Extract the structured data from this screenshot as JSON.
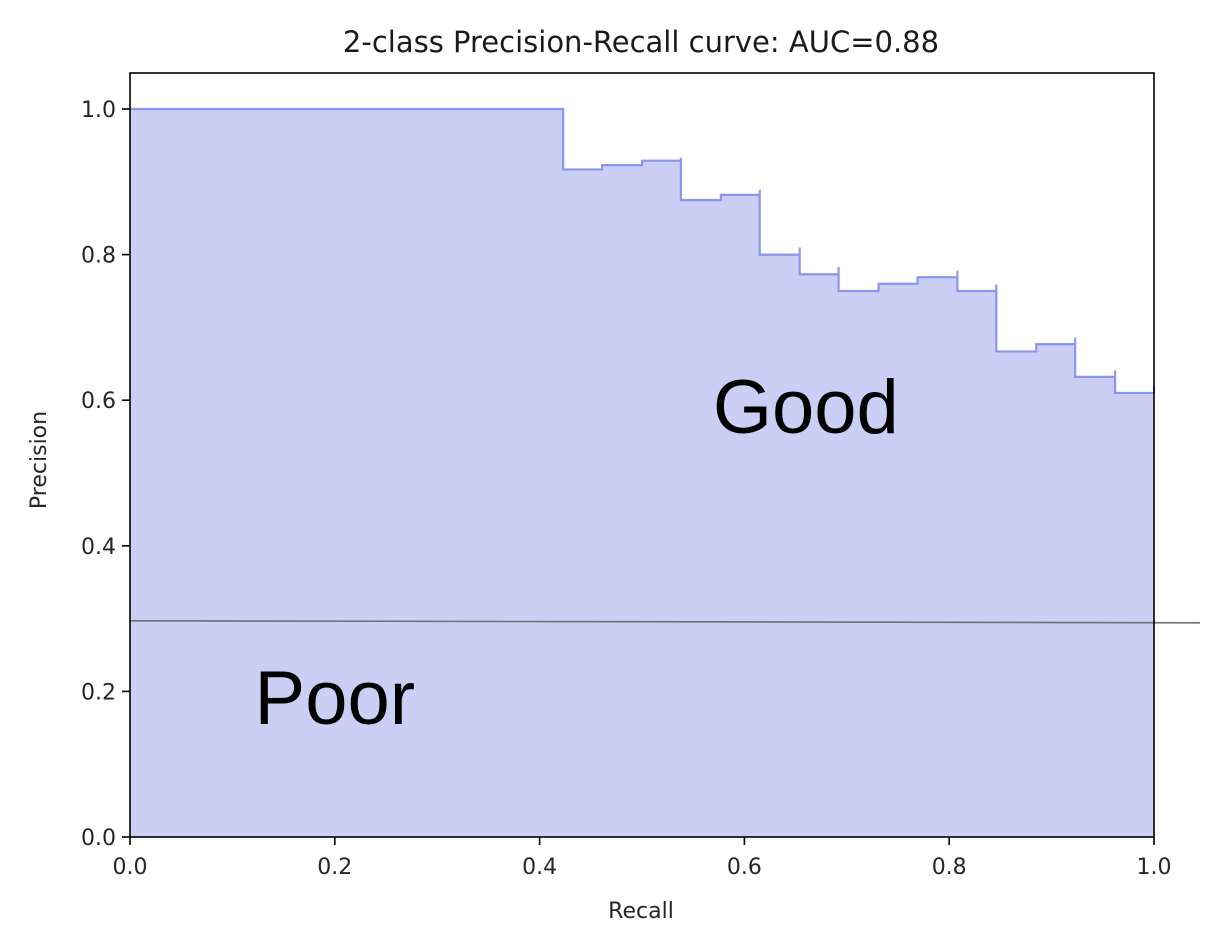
{
  "chart_data": {
    "type": "area",
    "title": "2-class Precision-Recall curve: AUC=0.88",
    "xlabel": "Recall",
    "ylabel": "Precision",
    "xlim": [
      0.0,
      1.0
    ],
    "ylim": [
      0.0,
      1.0
    ],
    "x_ticks": [
      "0.0",
      "0.2",
      "0.4",
      "0.6",
      "0.8",
      "1.0"
    ],
    "y_ticks": [
      "0.0",
      "0.2",
      "0.4",
      "0.6",
      "0.8",
      "1.0"
    ],
    "x_tick_values": [
      0.0,
      0.2,
      0.4,
      0.6,
      0.8,
      1.0
    ],
    "y_tick_values": [
      0.0,
      0.2,
      0.4,
      0.6,
      0.8,
      1.0
    ],
    "step": "post",
    "series": [
      {
        "recall": [
          0.0,
          0.423,
          0.423,
          0.461,
          0.5,
          0.538,
          0.538,
          0.577,
          0.615,
          0.615,
          0.654,
          0.654,
          0.692,
          0.692,
          0.731,
          0.769,
          0.808,
          0.808,
          0.846,
          0.846,
          0.885,
          0.923,
          0.923,
          0.962,
          0.962,
          1.0
        ],
        "precision": [
          1.0,
          1.0,
          0.917,
          0.923,
          0.929,
          0.933,
          0.875,
          0.882,
          0.889,
          0.8,
          0.81,
          0.773,
          0.783,
          0.75,
          0.76,
          0.769,
          0.778,
          0.75,
          0.759,
          0.667,
          0.677,
          0.686,
          0.632,
          0.641,
          0.61,
          0.619
        ]
      }
    ],
    "baseline": {
      "precision": 0.297
    },
    "annotations": [
      {
        "text": "Good",
        "x": 0.66,
        "y": 0.555
      },
      {
        "text": "Poor",
        "x": 0.2,
        "y": 0.155
      }
    ],
    "colors": {
      "fill": "#cbcef5",
      "curve": "#7b87ea",
      "baseline": "#6e6e6e",
      "axes": "#000000"
    },
    "grid": false,
    "legend": "none"
  }
}
